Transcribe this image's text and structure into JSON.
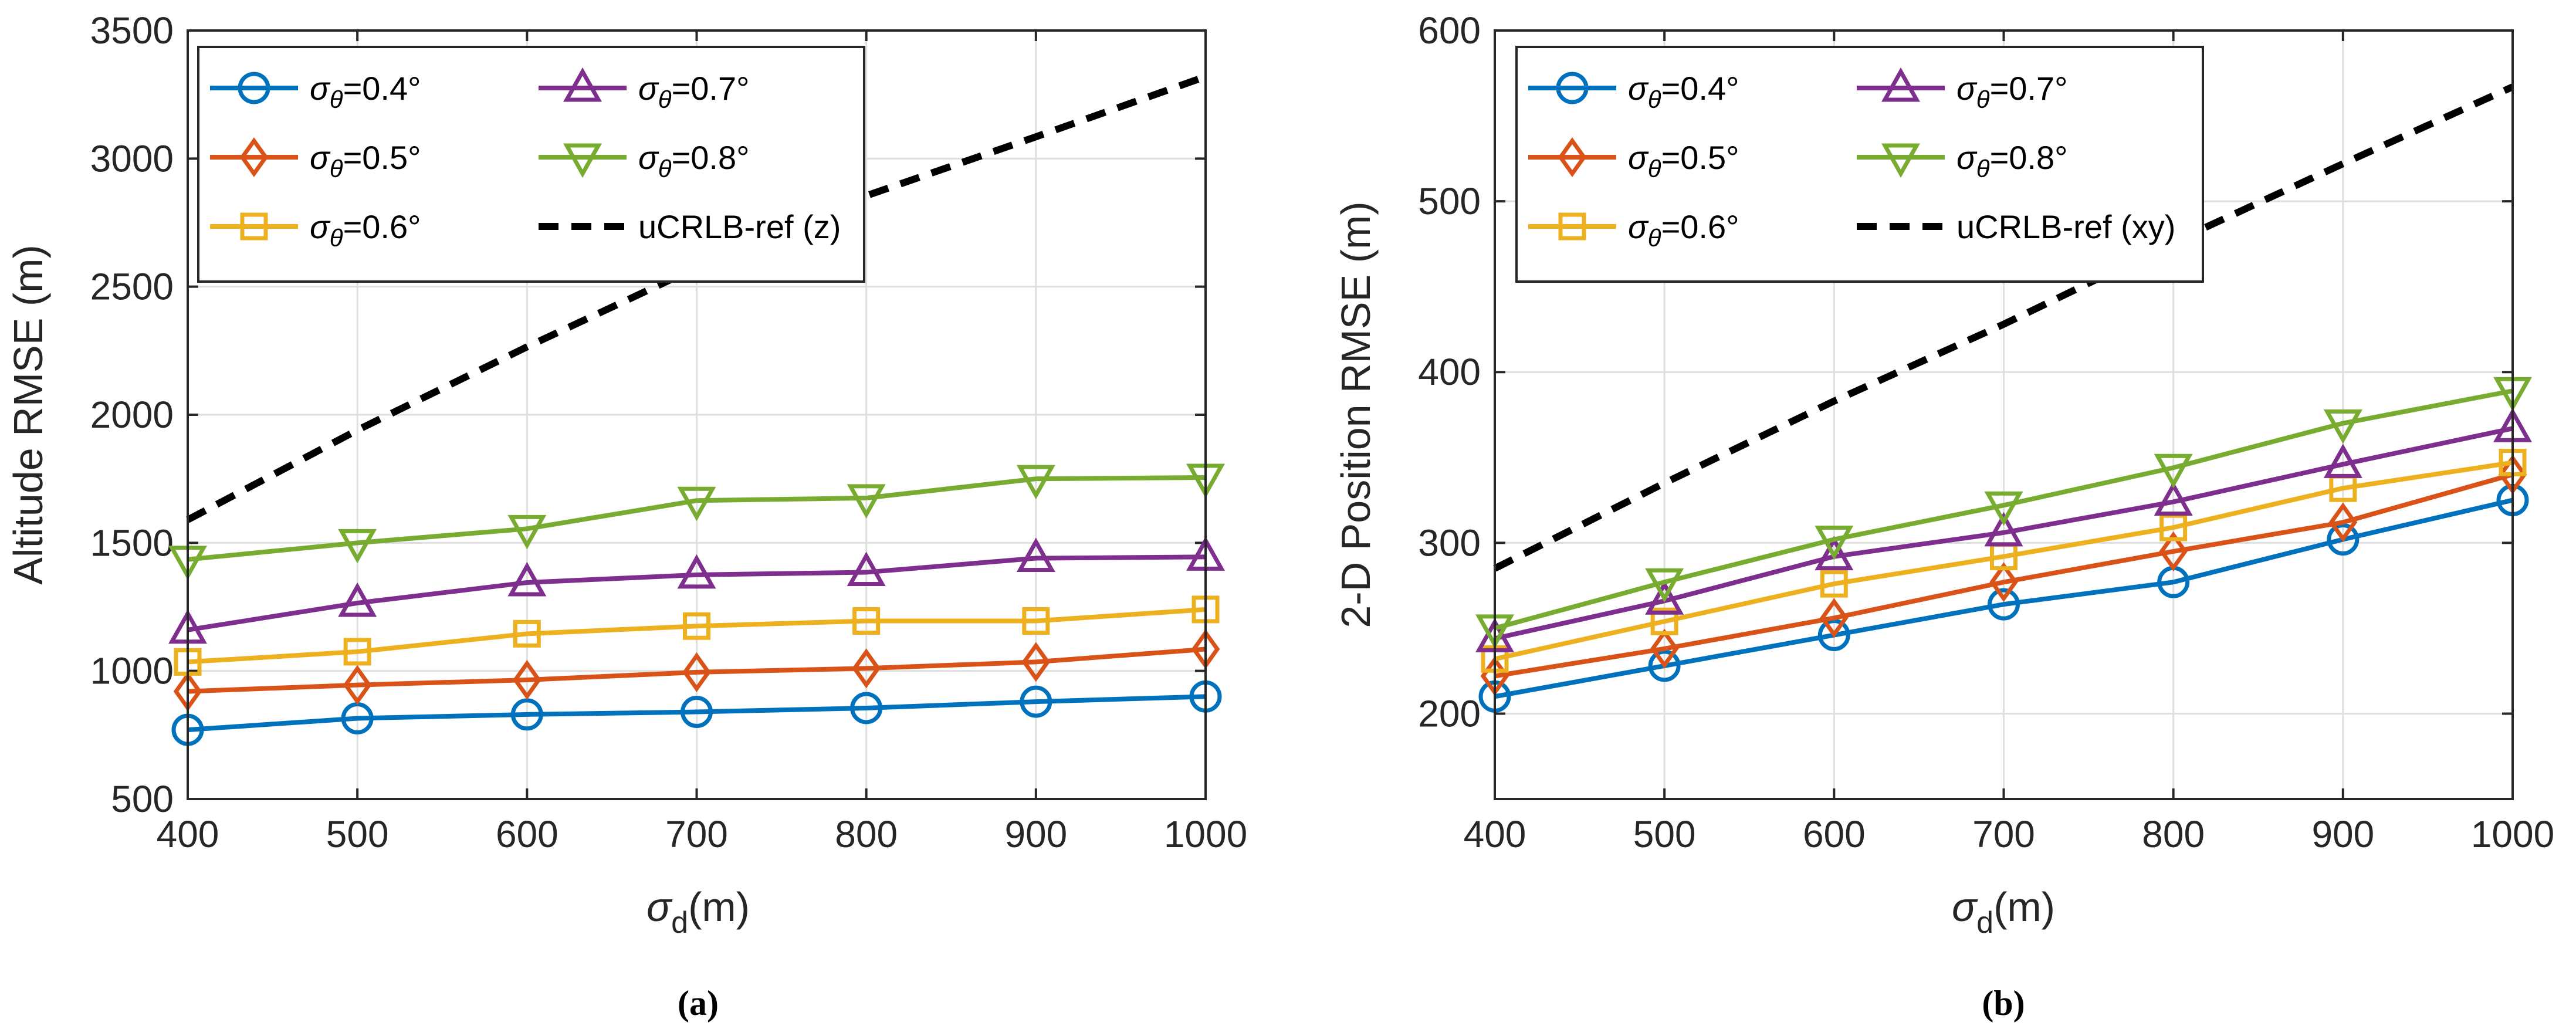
{
  "chart_data": [
    {
      "type": "line",
      "caption": "(a)",
      "xlabel": "σ",
      "xlabel_sub": "d",
      "xlabel_unit": "(m)",
      "ylabel": "Altitude RMSE (m)",
      "xlim": [
        400,
        1000
      ],
      "ylim": [
        500,
        3500
      ],
      "xticks": [
        400,
        500,
        600,
        700,
        800,
        900,
        1000
      ],
      "yticks": [
        500,
        1000,
        1500,
        2000,
        2500,
        3000,
        3500
      ],
      "x": [
        400,
        500,
        600,
        700,
        800,
        900,
        1000
      ],
      "legend_position": "top-left",
      "series": [
        {
          "name": "σθ=0.4°",
          "sym": "σ",
          "sub": "θ",
          "val": "=0.4°",
          "color": "#0072BD",
          "marker": "circle",
          "values": [
            770,
            815,
            830,
            840,
            855,
            880,
            900
          ]
        },
        {
          "name": "σθ=0.5°",
          "sym": "σ",
          "sub": "θ",
          "val": "=0.5°",
          "color": "#D95319",
          "marker": "diamond",
          "values": [
            920,
            945,
            965,
            995,
            1010,
            1035,
            1085
          ]
        },
        {
          "name": "σθ=0.6°",
          "sym": "σ",
          "sub": "θ",
          "val": "=0.6°",
          "color": "#EDB120",
          "marker": "square",
          "values": [
            1035,
            1075,
            1145,
            1175,
            1195,
            1195,
            1240
          ]
        },
        {
          "name": "σθ=0.7°",
          "sym": "σ",
          "sub": "θ",
          "val": "=0.7°",
          "color": "#7E2F8E",
          "marker": "triangle-up",
          "values": [
            1160,
            1265,
            1345,
            1375,
            1385,
            1440,
            1445
          ]
        },
        {
          "name": "σθ=0.8°",
          "sym": "σ",
          "sub": "θ",
          "val": "=0.8°",
          "color": "#77AC30",
          "marker": "triangle-down",
          "values": [
            1435,
            1500,
            1555,
            1665,
            1675,
            1750,
            1755
          ]
        },
        {
          "name": "uCRLB-ref (z)",
          "color": "#000000",
          "marker": "none",
          "dashed": true,
          "values": [
            1590,
            1940,
            2265,
            2575,
            2855,
            3085,
            3320
          ]
        }
      ]
    },
    {
      "type": "line",
      "caption": "(b)",
      "xlabel": "σ",
      "xlabel_sub": "d",
      "xlabel_unit": "(m)",
      "ylabel": "2-D Position RMSE (m)",
      "xlim": [
        400,
        1000
      ],
      "ylim": [
        150,
        600
      ],
      "xticks": [
        400,
        500,
        600,
        700,
        800,
        900,
        1000
      ],
      "yticks": [
        200,
        300,
        400,
        500,
        600
      ],
      "x": [
        400,
        500,
        600,
        700,
        800,
        900,
        1000
      ],
      "legend_position": "top-left",
      "series": [
        {
          "name": "σθ=0.4°",
          "sym": "σ",
          "sub": "θ",
          "val": "=0.4°",
          "color": "#0072BD",
          "marker": "circle",
          "values": [
            210,
            228,
            246,
            264,
            277,
            302,
            325
          ]
        },
        {
          "name": "σθ=0.5°",
          "sym": "σ",
          "sub": "θ",
          "val": "=0.5°",
          "color": "#D95319",
          "marker": "diamond",
          "values": [
            222,
            238,
            256,
            277,
            295,
            312,
            340
          ]
        },
        {
          "name": "σθ=0.6°",
          "sym": "σ",
          "sub": "θ",
          "val": "=0.6°",
          "color": "#EDB120",
          "marker": "square",
          "values": [
            232,
            254,
            276,
            292,
            309,
            332,
            347
          ]
        },
        {
          "name": "σθ=0.7°",
          "sym": "σ",
          "sub": "θ",
          "val": "=0.7°",
          "color": "#7E2F8E",
          "marker": "triangle-up",
          "values": [
            244,
            266,
            292,
            306,
            324,
            346,
            367
          ]
        },
        {
          "name": "σθ=0.8°",
          "sym": "σ",
          "sub": "θ",
          "val": "=0.8°",
          "color": "#77AC30",
          "marker": "triangle-down",
          "values": [
            250,
            277,
            302,
            322,
            344,
            370,
            389
          ]
        },
        {
          "name": "uCRLB-ref (xy)",
          "color": "#000000",
          "marker": "none",
          "dashed": true,
          "values": [
            285,
            335,
            383,
            428,
            476,
            522,
            567
          ]
        }
      ]
    }
  ]
}
